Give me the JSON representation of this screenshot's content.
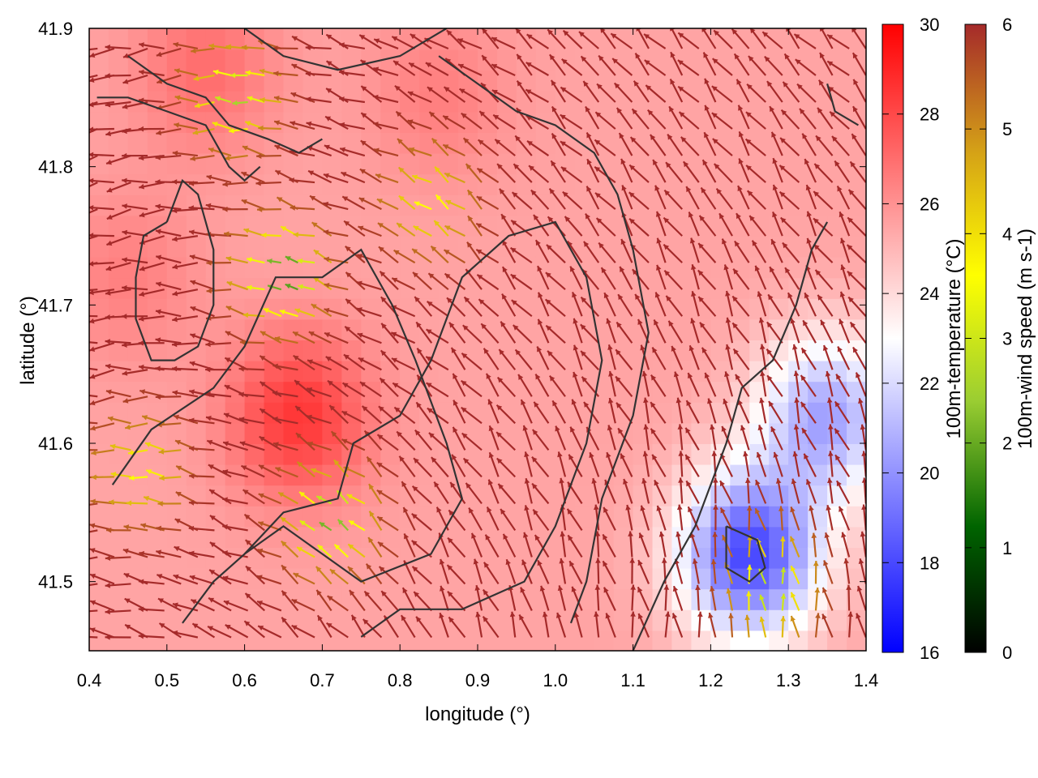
{
  "chart_data": {
    "type": "quiver-heatmap",
    "xlabel": "longitude (°)",
    "ylabel": "latitude (°)",
    "xlim": [
      0.4,
      1.4
    ],
    "ylim": [
      41.45,
      41.9
    ],
    "x_ticks": [
      "0.4",
      "0.5",
      "0.6",
      "0.7",
      "0.8",
      "0.9",
      "1.0",
      "1.1",
      "1.2",
      "1.3",
      "1.4"
    ],
    "y_ticks": [
      "41.5",
      "41.6",
      "41.7",
      "41.8",
      "41.9"
    ],
    "grid": false,
    "temperature_field": {
      "label": "100m-temperature (°C)",
      "range": [
        16,
        30
      ],
      "ticks": [
        "16",
        "18",
        "20",
        "22",
        "24",
        "26",
        "28",
        "30"
      ],
      "colormap": [
        "#0000ff",
        "#ffffff",
        "#ff0000"
      ],
      "hotspots": [
        {
          "lon": 0.67,
          "lat": 41.62,
          "value": 28.5
        },
        {
          "lon": 0.55,
          "lat": 41.87,
          "value": 27
        },
        {
          "lon": 0.45,
          "lat": 41.72,
          "value": 26.5
        },
        {
          "lon": 0.85,
          "lat": 41.85,
          "value": 26.5
        }
      ],
      "coldspots": [
        {
          "lon": 1.25,
          "lat": 41.52,
          "value": 18
        },
        {
          "lon": 1.35,
          "lat": 41.62,
          "value": 20.5
        }
      ],
      "background": 25.5
    },
    "wind_field": {
      "label": "100m-wind speed (m s-1)",
      "range": [
        0,
        6
      ],
      "ticks": [
        "0",
        "1",
        "2",
        "3",
        "4",
        "5",
        "6"
      ],
      "colormap": [
        "#000000",
        "#006400",
        "#9acd32",
        "#ffff00",
        "#d4a017",
        "#a52a2a"
      ],
      "arrow_spacing_deg": 0.0215,
      "max_speed": 6,
      "calm_centers": [
        {
          "lon": 0.66,
          "lat": 41.72,
          "speed": 1.5
        },
        {
          "lon": 0.72,
          "lat": 41.54,
          "speed": 2
        },
        {
          "lon": 0.6,
          "lat": 41.85,
          "speed": 2.5
        },
        {
          "lon": 0.85,
          "lat": 41.77,
          "speed": 3.5
        },
        {
          "lon": 1.28,
          "lat": 41.49,
          "speed": 2.5
        },
        {
          "lon": 0.48,
          "lat": 41.58,
          "speed": 3.5
        }
      ]
    },
    "contours": [
      [
        [
          0.41,
          41.85
        ],
        [
          0.45,
          41.85
        ],
        [
          0.5,
          41.84
        ],
        [
          0.55,
          41.83
        ],
        [
          0.58,
          41.8
        ],
        [
          0.6,
          41.79
        ],
        [
          0.62,
          41.8
        ]
      ],
      [
        [
          0.45,
          41.88
        ],
        [
          0.5,
          41.86
        ],
        [
          0.55,
          41.85
        ],
        [
          0.58,
          41.83
        ],
        [
          0.63,
          41.82
        ],
        [
          0.67,
          41.81
        ],
        [
          0.7,
          41.82
        ]
      ],
      [
        [
          0.5,
          41.76
        ],
        [
          0.47,
          41.75
        ],
        [
          0.46,
          41.72
        ],
        [
          0.46,
          41.69
        ],
        [
          0.48,
          41.66
        ],
        [
          0.51,
          41.66
        ],
        [
          0.54,
          41.67
        ],
        [
          0.56,
          41.7
        ],
        [
          0.56,
          41.74
        ],
        [
          0.54,
          41.78
        ],
        [
          0.52,
          41.79
        ],
        [
          0.5,
          41.76
        ]
      ],
      [
        [
          0.43,
          41.57
        ],
        [
          0.48,
          41.61
        ],
        [
          0.56,
          41.64
        ],
        [
          0.6,
          41.67
        ],
        [
          0.64,
          41.72
        ],
        [
          0.7,
          41.72
        ],
        [
          0.75,
          41.74
        ],
        [
          0.79,
          41.7
        ],
        [
          0.82,
          41.66
        ],
        [
          0.86,
          41.6
        ],
        [
          0.88,
          41.56
        ],
        [
          0.84,
          41.52
        ],
        [
          0.75,
          41.5
        ],
        [
          0.7,
          41.52
        ],
        [
          0.65,
          41.54
        ],
        [
          0.6,
          41.52
        ]
      ],
      [
        [
          0.52,
          41.47
        ],
        [
          0.56,
          41.5
        ],
        [
          0.6,
          41.52
        ],
        [
          0.65,
          41.55
        ],
        [
          0.72,
          41.56
        ],
        [
          0.74,
          41.6
        ],
        [
          0.8,
          41.62
        ],
        [
          0.84,
          41.66
        ],
        [
          0.88,
          41.72
        ],
        [
          0.94,
          41.75
        ],
        [
          1.0,
          41.76
        ],
        [
          1.04,
          41.72
        ],
        [
          1.06,
          41.66
        ],
        [
          1.04,
          41.6
        ],
        [
          1.0,
          41.54
        ],
        [
          0.96,
          41.5
        ],
        [
          0.88,
          41.48
        ],
        [
          0.8,
          41.48
        ],
        [
          0.75,
          41.46
        ]
      ],
      [
        [
          0.85,
          41.88
        ],
        [
          0.9,
          41.86
        ],
        [
          0.95,
          41.84
        ],
        [
          1.0,
          41.83
        ],
        [
          1.05,
          41.81
        ],
        [
          1.08,
          41.78
        ],
        [
          1.1,
          41.74
        ],
        [
          1.12,
          41.68
        ],
        [
          1.1,
          41.62
        ],
        [
          1.06,
          41.56
        ],
        [
          1.04,
          41.5
        ],
        [
          1.02,
          41.47
        ]
      ],
      [
        [
          1.1,
          41.45
        ],
        [
          1.14,
          41.5
        ],
        [
          1.18,
          41.54
        ],
        [
          1.22,
          41.6
        ],
        [
          1.24,
          41.64
        ],
        [
          1.28,
          41.66
        ],
        [
          1.31,
          41.7
        ],
        [
          1.33,
          41.74
        ],
        [
          1.35,
          41.76
        ]
      ],
      [
        [
          1.22,
          41.54
        ],
        [
          1.26,
          41.53
        ],
        [
          1.27,
          41.51
        ],
        [
          1.25,
          41.5
        ],
        [
          1.22,
          41.51
        ],
        [
          1.22,
          41.54
        ]
      ],
      [
        [
          1.35,
          41.86
        ],
        [
          1.36,
          41.84
        ],
        [
          1.39,
          41.83
        ]
      ],
      [
        [
          0.6,
          41.9
        ],
        [
          0.65,
          41.88
        ],
        [
          0.72,
          41.87
        ],
        [
          0.8,
          41.88
        ],
        [
          0.86,
          41.9
        ]
      ]
    ]
  }
}
